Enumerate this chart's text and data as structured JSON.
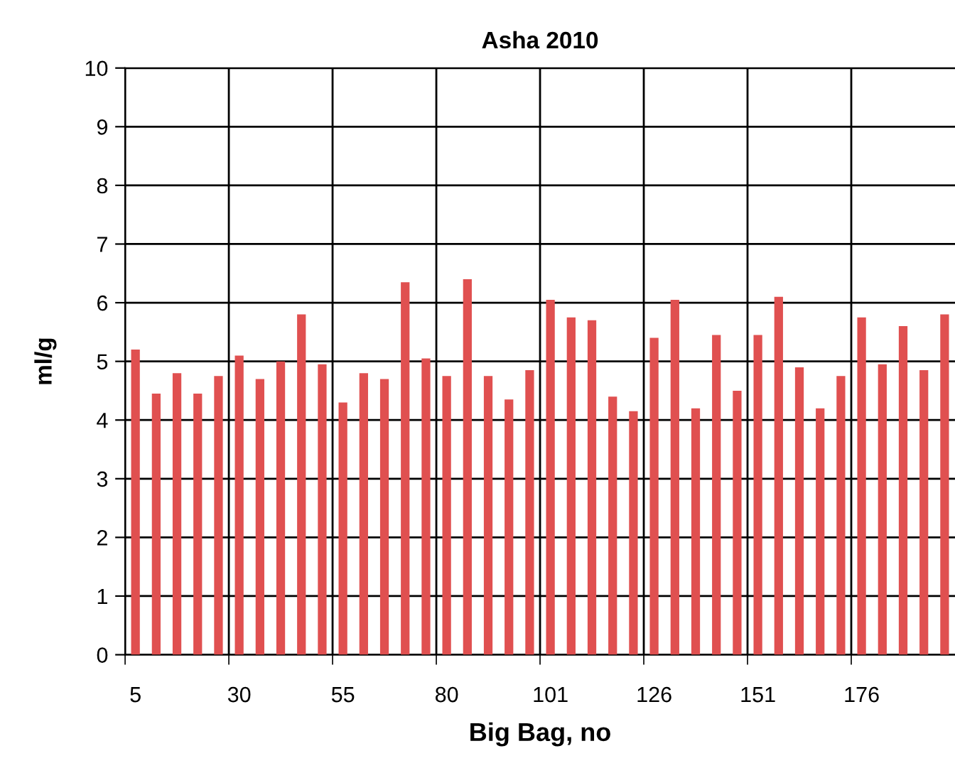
{
  "chart_data": {
    "type": "bar",
    "title": "Asha 2010",
    "xlabel": "Big Bag, no",
    "ylabel": "ml/g",
    "categories": [
      "5",
      null,
      null,
      null,
      null,
      "30",
      null,
      null,
      null,
      null,
      "55",
      null,
      null,
      null,
      null,
      "80",
      null,
      null,
      null,
      null,
      "101",
      null,
      null,
      null,
      null,
      "126",
      null,
      null,
      null,
      null,
      "151",
      null,
      null,
      null,
      null,
      "176",
      null,
      null,
      null,
      null
    ],
    "values": [
      5.2,
      4.45,
      4.8,
      4.45,
      4.75,
      5.1,
      4.7,
      5.0,
      5.8,
      4.95,
      4.3,
      4.8,
      4.7,
      6.35,
      5.05,
      4.75,
      6.4,
      4.75,
      4.35,
      4.85,
      6.05,
      5.75,
      5.7,
      4.4,
      4.15,
      5.4,
      6.05,
      4.2,
      5.45,
      4.5,
      5.45,
      6.1,
      4.9,
      4.2,
      4.75,
      5.75,
      4.95,
      5.6,
      4.85,
      5.8
    ],
    "color": "#e05050",
    "ylim": [
      0,
      10
    ],
    "yticks": [
      0,
      1,
      2,
      3,
      4,
      5,
      6,
      7,
      8,
      9,
      10
    ],
    "grid": true
  }
}
